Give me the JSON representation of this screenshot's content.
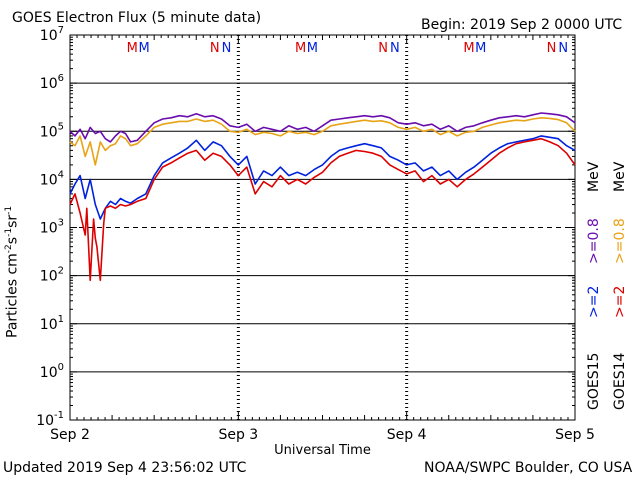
{
  "header": {
    "title": "GOES Electron Flux (5 minute data)",
    "begin": "Begin: 2019 Sep 2 0000 UTC"
  },
  "footer": {
    "updated": "Updated 2019 Sep  4 23:56:02 UTC",
    "credit": "NOAA/SWPC Boulder, CO USA"
  },
  "right_legend": {
    "goes15": "GOES15",
    "goes14": "GOES14",
    "e2_15": ">=2",
    "e2_14": ">=2",
    "e08_15": ">=0.8",
    "e08_14": ">=0.8",
    "unit": "MeV"
  },
  "colors": {
    "goes15_2mev": "#0022dd",
    "goes14_2mev": "#dd0000",
    "goes15_08mev": "#6a0dad",
    "goes14_08mev": "#e8a317"
  },
  "chart_data": {
    "type": "line",
    "title": "GOES Electron Flux (5 minute data)",
    "xlabel": "Universal Time",
    "ylabel": "Particles cm^-2 s^-1 sr^-1",
    "yscale": "log",
    "ylim": [
      0.1,
      10000000
    ],
    "xlim": [
      0,
      3
    ],
    "x_units": "days since 2019 Sep 2 0000 UTC",
    "x_ticks": [
      {
        "x": 0,
        "label": "Sep 2"
      },
      {
        "x": 1,
        "label": "Sep 3"
      },
      {
        "x": 2,
        "label": "Sep 4"
      },
      {
        "x": 3,
        "label": "Sep 5"
      }
    ],
    "y_ticks": [
      {
        "exp": -1,
        "base": "10",
        "sup": "-1"
      },
      {
        "exp": 0,
        "base": "10",
        "sup": "0"
      },
      {
        "exp": 1,
        "base": "10",
        "sup": "1"
      },
      {
        "exp": 2,
        "base": "10",
        "sup": "2"
      },
      {
        "exp": 3,
        "base": "10",
        "sup": "3"
      },
      {
        "exp": 4,
        "base": "10",
        "sup": "4"
      },
      {
        "exp": 5,
        "base": "10",
        "sup": "5"
      },
      {
        "exp": 6,
        "base": "10",
        "sup": "6"
      },
      {
        "exp": 7,
        "base": "10",
        "sup": "7"
      }
    ],
    "threshold_line": 1000,
    "grid_lines": [
      1,
      10,
      100,
      10000,
      100000,
      1000000
    ],
    "markers": [
      {
        "x": 0.37,
        "label": "M",
        "color": "#dd0000"
      },
      {
        "x": 0.44,
        "label": "M",
        "color": "#0022dd"
      },
      {
        "x": 0.86,
        "label": "N",
        "color": "#dd0000"
      },
      {
        "x": 0.93,
        "label": "N",
        "color": "#0022dd"
      },
      {
        "x": 1.37,
        "label": "M",
        "color": "#dd0000"
      },
      {
        "x": 1.44,
        "label": "M",
        "color": "#0022dd"
      },
      {
        "x": 1.86,
        "label": "N",
        "color": "#dd0000"
      },
      {
        "x": 1.93,
        "label": "N",
        "color": "#0022dd"
      },
      {
        "x": 2.37,
        "label": "M",
        "color": "#dd0000"
      },
      {
        "x": 2.44,
        "label": "M",
        "color": "#0022dd"
      },
      {
        "x": 2.86,
        "label": "N",
        "color": "#dd0000"
      },
      {
        "x": 2.93,
        "label": "N",
        "color": "#0022dd"
      }
    ],
    "series": [
      {
        "name": "GOES15 >=0.8 MeV",
        "color": "#6a0dad",
        "x": [
          0,
          0.03,
          0.06,
          0.09,
          0.12,
          0.15,
          0.18,
          0.21,
          0.24,
          0.27,
          0.3,
          0.33,
          0.36,
          0.4,
          0.45,
          0.5,
          0.55,
          0.6,
          0.65,
          0.7,
          0.75,
          0.8,
          0.85,
          0.9,
          0.95,
          1.0,
          1.05,
          1.1,
          1.15,
          1.2,
          1.25,
          1.3,
          1.35,
          1.4,
          1.45,
          1.5,
          1.55,
          1.6,
          1.65,
          1.7,
          1.75,
          1.8,
          1.85,
          1.9,
          1.95,
          2.0,
          2.05,
          2.1,
          2.15,
          2.2,
          2.25,
          2.3,
          2.35,
          2.4,
          2.45,
          2.5,
          2.55,
          2.6,
          2.65,
          2.7,
          2.75,
          2.8,
          2.85,
          2.9,
          2.95,
          3.0
        ],
        "y": [
          100000,
          80000,
          110000,
          70000,
          120000,
          90000,
          100000,
          70000,
          60000,
          80000,
          100000,
          90000,
          60000,
          65000,
          100000,
          150000,
          180000,
          190000,
          210000,
          200000,
          230000,
          200000,
          210000,
          180000,
          130000,
          120000,
          140000,
          100000,
          120000,
          110000,
          100000,
          130000,
          110000,
          120000,
          100000,
          130000,
          170000,
          180000,
          190000,
          200000,
          210000,
          200000,
          210000,
          190000,
          150000,
          140000,
          150000,
          130000,
          140000,
          110000,
          130000,
          100000,
          120000,
          130000,
          150000,
          170000,
          190000,
          200000,
          210000,
          200000,
          220000,
          240000,
          230000,
          220000,
          200000,
          150000
        ]
      },
      {
        "name": "GOES14 >=0.8 MeV",
        "color": "#e8a317",
        "x": [
          0,
          0.03,
          0.06,
          0.09,
          0.12,
          0.15,
          0.18,
          0.21,
          0.24,
          0.27,
          0.3,
          0.33,
          0.36,
          0.4,
          0.45,
          0.5,
          0.55,
          0.6,
          0.65,
          0.7,
          0.75,
          0.8,
          0.85,
          0.9,
          0.95,
          1.0,
          1.05,
          1.1,
          1.15,
          1.2,
          1.25,
          1.3,
          1.35,
          1.4,
          1.45,
          1.5,
          1.55,
          1.6,
          1.65,
          1.7,
          1.75,
          1.8,
          1.85,
          1.9,
          1.95,
          2.0,
          2.05,
          2.1,
          2.15,
          2.2,
          2.25,
          2.3,
          2.35,
          2.4,
          2.45,
          2.5,
          2.55,
          2.6,
          2.65,
          2.7,
          2.75,
          2.8,
          2.85,
          2.9,
          2.95,
          3.0
        ],
        "y": [
          60000,
          50000,
          80000,
          30000,
          60000,
          20000,
          60000,
          40000,
          50000,
          55000,
          80000,
          70000,
          50000,
          55000,
          80000,
          120000,
          140000,
          150000,
          160000,
          160000,
          180000,
          160000,
          170000,
          140000,
          100000,
          95000,
          110000,
          85000,
          95000,
          90000,
          80000,
          100000,
          90000,
          95000,
          85000,
          100000,
          130000,
          140000,
          150000,
          160000,
          170000,
          160000,
          165000,
          150000,
          120000,
          110000,
          120000,
          100000,
          110000,
          85000,
          100000,
          80000,
          95000,
          100000,
          120000,
          135000,
          150000,
          160000,
          170000,
          165000,
          180000,
          190000,
          185000,
          175000,
          150000,
          100000
        ]
      },
      {
        "name": "GOES15 >=2 MeV",
        "color": "#0022dd",
        "x": [
          0,
          0.03,
          0.06,
          0.09,
          0.12,
          0.15,
          0.18,
          0.21,
          0.24,
          0.27,
          0.3,
          0.33,
          0.36,
          0.4,
          0.45,
          0.5,
          0.55,
          0.6,
          0.65,
          0.7,
          0.75,
          0.8,
          0.85,
          0.9,
          0.95,
          1.0,
          1.05,
          1.1,
          1.15,
          1.2,
          1.25,
          1.3,
          1.35,
          1.4,
          1.45,
          1.5,
          1.55,
          1.6,
          1.65,
          1.7,
          1.75,
          1.8,
          1.85,
          1.9,
          1.95,
          2.0,
          2.05,
          2.1,
          2.15,
          2.2,
          2.25,
          2.3,
          2.35,
          2.4,
          2.45,
          2.5,
          2.55,
          2.6,
          2.65,
          2.7,
          2.75,
          2.8,
          2.85,
          2.9,
          2.95,
          3.0
        ],
        "y": [
          5000,
          8000,
          12000,
          4000,
          10000,
          3000,
          1500,
          2500,
          3500,
          3000,
          4000,
          3500,
          3200,
          4000,
          5000,
          12000,
          22000,
          28000,
          35000,
          45000,
          65000,
          40000,
          60000,
          50000,
          30000,
          20000,
          30000,
          8000,
          15000,
          12000,
          18000,
          12000,
          14000,
          12000,
          16000,
          20000,
          30000,
          40000,
          45000,
          50000,
          55000,
          50000,
          45000,
          30000,
          25000,
          20000,
          22000,
          15000,
          18000,
          12000,
          15000,
          10000,
          14000,
          18000,
          25000,
          35000,
          45000,
          55000,
          60000,
          65000,
          70000,
          80000,
          75000,
          70000,
          50000,
          40000
        ]
      },
      {
        "name": "GOES14 >=2 MeV",
        "color": "#dd0000",
        "x": [
          0,
          0.03,
          0.06,
          0.09,
          0.1,
          0.12,
          0.14,
          0.15,
          0.16,
          0.18,
          0.2,
          0.21,
          0.24,
          0.27,
          0.3,
          0.33,
          0.36,
          0.4,
          0.45,
          0.5,
          0.55,
          0.6,
          0.65,
          0.7,
          0.75,
          0.8,
          0.85,
          0.9,
          0.95,
          1.0,
          1.05,
          1.1,
          1.15,
          1.2,
          1.25,
          1.3,
          1.35,
          1.4,
          1.45,
          1.5,
          1.55,
          1.6,
          1.65,
          1.7,
          1.75,
          1.8,
          1.85,
          1.9,
          1.95,
          2.0,
          2.05,
          2.1,
          2.15,
          2.2,
          2.25,
          2.3,
          2.35,
          2.4,
          2.45,
          2.5,
          2.55,
          2.6,
          2.65,
          2.7,
          2.75,
          2.8,
          2.85,
          2.9,
          2.95,
          3.0
        ],
        "y": [
          3000,
          5000,
          2000,
          700,
          2500,
          80,
          1500,
          600,
          400,
          80,
          1200,
          2500,
          2800,
          2500,
          3000,
          2800,
          3000,
          3500,
          4000,
          10000,
          18000,
          22000,
          28000,
          35000,
          40000,
          25000,
          35000,
          30000,
          20000,
          12000,
          18000,
          5000,
          9000,
          7000,
          12000,
          8000,
          10000,
          8000,
          11000,
          14000,
          22000,
          30000,
          35000,
          40000,
          38000,
          35000,
          30000,
          20000,
          16000,
          13000,
          15000,
          9000,
          12000,
          8000,
          10000,
          7000,
          10000,
          13000,
          18000,
          25000,
          35000,
          45000,
          55000,
          60000,
          65000,
          70000,
          60000,
          50000,
          35000,
          20000
        ]
      }
    ]
  }
}
